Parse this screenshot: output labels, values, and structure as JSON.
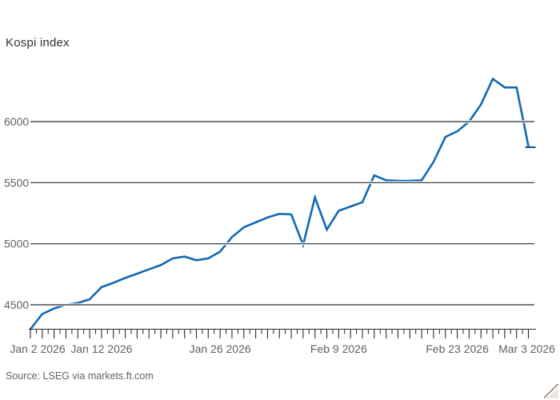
{
  "title": "Kospi index",
  "source": "Source: LSEG via markets.ft.com",
  "colors": {
    "background": "#ffffff",
    "line": "#1268b3",
    "line_end_marker": "#0d4a86",
    "grid": "#262a33",
    "grid_casing": "#ffffff",
    "axis_text": "#66605c",
    "title_text": "#33302e",
    "corner_fill": "#f2e5da",
    "corner_line": "#8a827a"
  },
  "chart_data": {
    "type": "line",
    "title": "Kospi index",
    "ylabel": "",
    "xlabel": "",
    "legend": "none",
    "grid": "horizontal",
    "ylim": [
      4300,
      6400
    ],
    "y_ticks": [
      4500,
      5000,
      5500,
      6000
    ],
    "x": [
      "Jan 2 2026",
      "Jan 5 2026",
      "Jan 6 2026",
      "Jan 7 2026",
      "Jan 8 2026",
      "Jan 9 2026",
      "Jan 12 2026",
      "Jan 13 2026",
      "Jan 14 2026",
      "Jan 15 2026",
      "Jan 16 2026",
      "Jan 19 2026",
      "Jan 20 2026",
      "Jan 21 2026",
      "Jan 22 2026",
      "Jan 23 2026",
      "Jan 26 2026",
      "Jan 27 2026",
      "Jan 28 2026",
      "Jan 29 2026",
      "Jan 30 2026",
      "Feb 2 2026",
      "Feb 3 2026",
      "Feb 4 2026",
      "Feb 5 2026",
      "Feb 6 2026",
      "Feb 9 2026",
      "Feb 10 2026",
      "Feb 11 2026",
      "Feb 12 2026",
      "Feb 13 2026",
      "Feb 16 2026",
      "Feb 17 2026",
      "Feb 18 2026",
      "Feb 19 2026",
      "Feb 20 2026",
      "Feb 23 2026",
      "Feb 24 2026",
      "Feb 25 2026",
      "Feb 26 2026",
      "Feb 27 2026",
      "Mar 2 2026",
      "Mar 3 2026"
    ],
    "values": [
      4300,
      4425,
      4470,
      4500,
      4515,
      4545,
      4645,
      4680,
      4720,
      4755,
      4790,
      4825,
      4880,
      4895,
      4865,
      4880,
      4935,
      5055,
      5135,
      5175,
      5215,
      5245,
      5240,
      4990,
      5380,
      5115,
      5270,
      5305,
      5340,
      5560,
      5520,
      5515,
      5515,
      5520,
      5670,
      5875,
      5920,
      6000,
      6140,
      6350,
      6280,
      6280,
      5800
    ],
    "last_value": 5800,
    "x_axis_labels": [
      {
        "label": "Jan 2 2026",
        "index": 0
      },
      {
        "label": "Jan 12 2026",
        "index": 6
      },
      {
        "label": "Jan 26 2026",
        "index": 16
      },
      {
        "label": "Feb 9 2026",
        "index": 26
      },
      {
        "label": "Feb 23 2026",
        "index": 36
      },
      {
        "label": "Mar 3 2026",
        "index": 42
      }
    ]
  }
}
